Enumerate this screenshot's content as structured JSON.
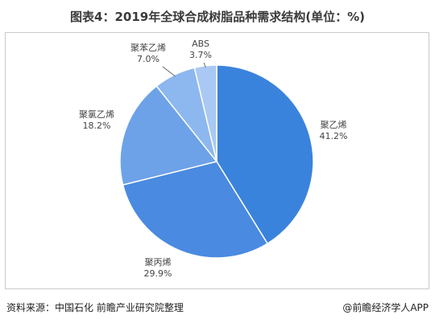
{
  "title": "图表4：2019年全球合成树脂品种需求结构(单位：%)",
  "source_text": "资料来源：中国石化 前瞻产业研究院整理",
  "brand_text": "@前瞻经济学人APP",
  "colors": {
    "pe": "#3a83dc",
    "pp": "#4a8ae0",
    "pvc": "#6da2e8",
    "ps": "#8db7ef",
    "abs": "#a9c8f3",
    "edge": "#ffffff"
  },
  "chart_data": {
    "type": "pie",
    "title": "",
    "slices": [
      {
        "label": "聚乙烯",
        "value": 41.2,
        "display": "41.2%"
      },
      {
        "label": "聚丙烯",
        "value": 29.9,
        "display": "29.9%"
      },
      {
        "label": "聚氯乙烯",
        "value": 18.2,
        "display": "18.2%"
      },
      {
        "label": "聚苯乙烯",
        "value": 7.0,
        "display": "7.0%"
      },
      {
        "label": "ABS",
        "value": 3.7,
        "display": "3.7%"
      }
    ]
  }
}
